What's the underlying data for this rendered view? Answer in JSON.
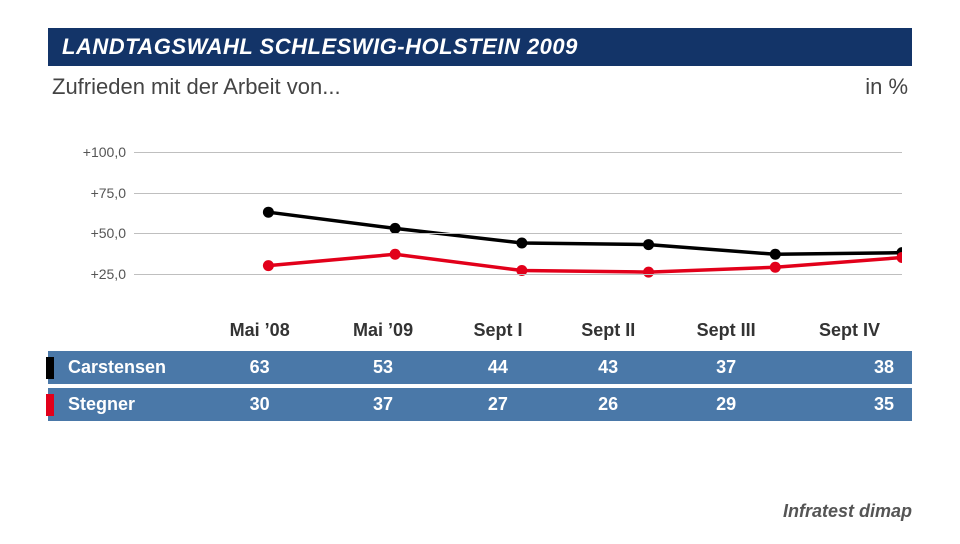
{
  "header": {
    "title": "LANDTAGSWAHL SCHLESWIG-HOLSTEIN 2009",
    "subtitle": "Zufrieden mit der Arbeit von...",
    "unit": "in %",
    "header_bg": "#133468",
    "header_fg": "#ffffff",
    "title_fontsize": 22,
    "subtitle_fontsize": 22
  },
  "chart": {
    "type": "line",
    "categories": [
      "Mai ’08",
      "Mai ’09",
      "Sept I",
      "Sept II",
      "Sept III",
      "Sept IV"
    ],
    "series": [
      {
        "name": "Carstensen",
        "color": "#000000",
        "values": [
          63,
          53,
          44,
          43,
          37,
          38
        ]
      },
      {
        "name": "Stegner",
        "color": "#e2001a",
        "values": [
          30,
          37,
          27,
          26,
          29,
          35
        ]
      }
    ],
    "ylim": [
      10,
      115
    ],
    "yticks": [
      25.0,
      50.0,
      75.0,
      100.0
    ],
    "ytick_labels": [
      "+25,0",
      "+50,0",
      "+75,0",
      "+100,0"
    ],
    "grid_color": "#bfbfbf",
    "line_width": 3.5,
    "marker_radius": 5.5,
    "tick_fontsize": 14,
    "x_positions_pct": [
      17.5,
      34,
      50.5,
      67,
      83.5,
      100
    ]
  },
  "table": {
    "row_bg": "#4a78a8",
    "row_fg": "#ffffff",
    "header_fg": "#333333",
    "fontsize": 18
  },
  "source": {
    "text": "Infratest dimap",
    "fontsize": 18,
    "color": "#555555"
  }
}
